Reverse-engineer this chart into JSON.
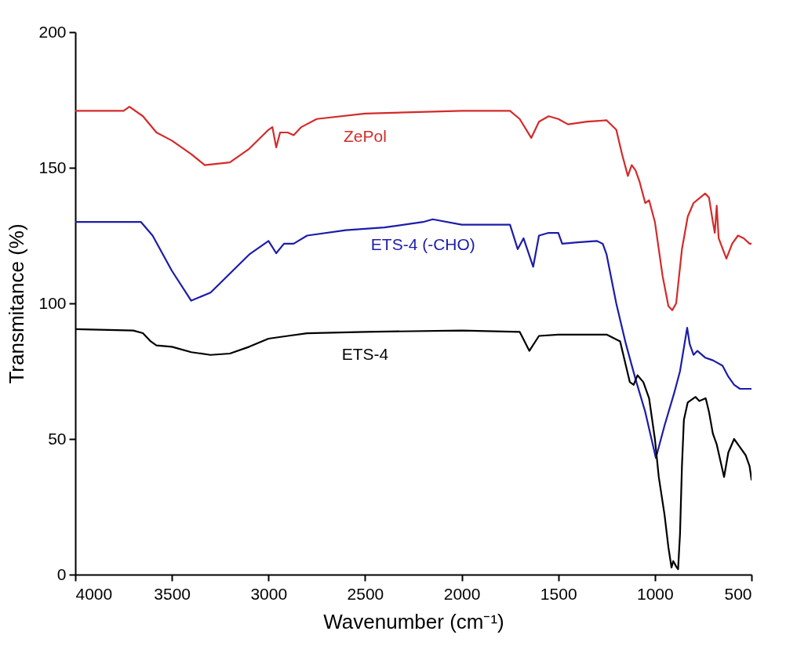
{
  "chart_data": {
    "type": "line",
    "xlabel": "Wavenumber (cm⁻¹)",
    "ylabel": "Transmitance (%)",
    "xlim": [
      4000,
      500
    ],
    "ylim": [
      0,
      200
    ],
    "xticks": [
      4000,
      3500,
      3000,
      2500,
      2000,
      1500,
      1000,
      500
    ],
    "yticks": [
      0,
      50,
      100,
      150,
      200
    ],
    "grid": false,
    "legend": false,
    "series": [
      {
        "name": "ZePol",
        "color": "#d42a2a",
        "x": [
          4000,
          3750,
          3720,
          3650,
          3580,
          3500,
          3400,
          3330,
          3200,
          3100,
          3000,
          2980,
          2960,
          2940,
          2900,
          2870,
          2830,
          2750,
          2500,
          2000,
          1750,
          1700,
          1640,
          1600,
          1550,
          1500,
          1450,
          1350,
          1250,
          1200,
          1170,
          1140,
          1120,
          1100,
          1080,
          1050,
          1030,
          1000,
          960,
          930,
          910,
          890,
          860,
          830,
          800,
          740,
          720,
          700,
          690,
          680,
          670,
          630,
          600,
          570,
          540,
          510,
          500
        ],
        "values": [
          171,
          171,
          172.5,
          169,
          163,
          160,
          155,
          151,
          152,
          157,
          164,
          165,
          157.5,
          163,
          163,
          162,
          165,
          168,
          170,
          171,
          171,
          168,
          161,
          167,
          169,
          168,
          166,
          167,
          167.5,
          164,
          155,
          147,
          151,
          149,
          145,
          137,
          138,
          130,
          110,
          99,
          97.5,
          100,
          120,
          132,
          137,
          140.5,
          139,
          130,
          126,
          136,
          124,
          116.5,
          122,
          125,
          124,
          122,
          122
        ]
      },
      {
        "name": "ETS-4 (-CHO)",
        "color": "#1c1caa",
        "x": [
          4000,
          3660,
          3600,
          3500,
          3400,
          3300,
          3200,
          3100,
          3000,
          2960,
          2920,
          2870,
          2800,
          2600,
          2400,
          2200,
          2150,
          2000,
          1750,
          1710,
          1680,
          1630,
          1600,
          1550,
          1500,
          1480,
          1400,
          1300,
          1270,
          1250,
          1200,
          1150,
          1100,
          1050,
          995,
          950,
          900,
          870,
          833,
          820,
          800,
          780,
          740,
          700,
          650,
          620,
          590,
          560,
          500
        ],
        "values": [
          130,
          130,
          125,
          112,
          101,
          104,
          111,
          118,
          123,
          118.5,
          122,
          122,
          125,
          127,
          128,
          130,
          131,
          129,
          129,
          120,
          124,
          113.5,
          125,
          126,
          126,
          122,
          122.5,
          123,
          122,
          118,
          100,
          85,
          72,
          60,
          43,
          55,
          67,
          75,
          91,
          85,
          81,
          82.5,
          80,
          79,
          77,
          73,
          70,
          68.5,
          68.5
        ]
      },
      {
        "name": "ETS-4",
        "color": "#000000",
        "x": [
          4000,
          3700,
          3650,
          3610,
          3580,
          3500,
          3400,
          3300,
          3200,
          3100,
          3000,
          2900,
          2800,
          2500,
          2000,
          1700,
          1650,
          1600,
          1500,
          1250,
          1180,
          1160,
          1130,
          1110,
          1090,
          1060,
          1030,
          1000,
          980,
          950,
          930,
          914,
          905,
          890,
          880,
          870,
          860,
          850,
          830,
          790,
          770,
          737,
          720,
          700,
          680,
          642,
          620,
          590,
          560,
          530,
          510,
          500
        ],
        "values": [
          90.5,
          90,
          89,
          86,
          84.5,
          84,
          82,
          81,
          81.5,
          84,
          87,
          88,
          89,
          89.5,
          90,
          89.5,
          82.5,
          88,
          88.5,
          88.5,
          86,
          80,
          71,
          70,
          73.5,
          71,
          65,
          50,
          36,
          22,
          10,
          2.6,
          5,
          3,
          2,
          15,
          40,
          57,
          63.5,
          65.5,
          64,
          65,
          60,
          52,
          48,
          36,
          45,
          50,
          47,
          44,
          40,
          35
        ]
      }
    ]
  }
}
